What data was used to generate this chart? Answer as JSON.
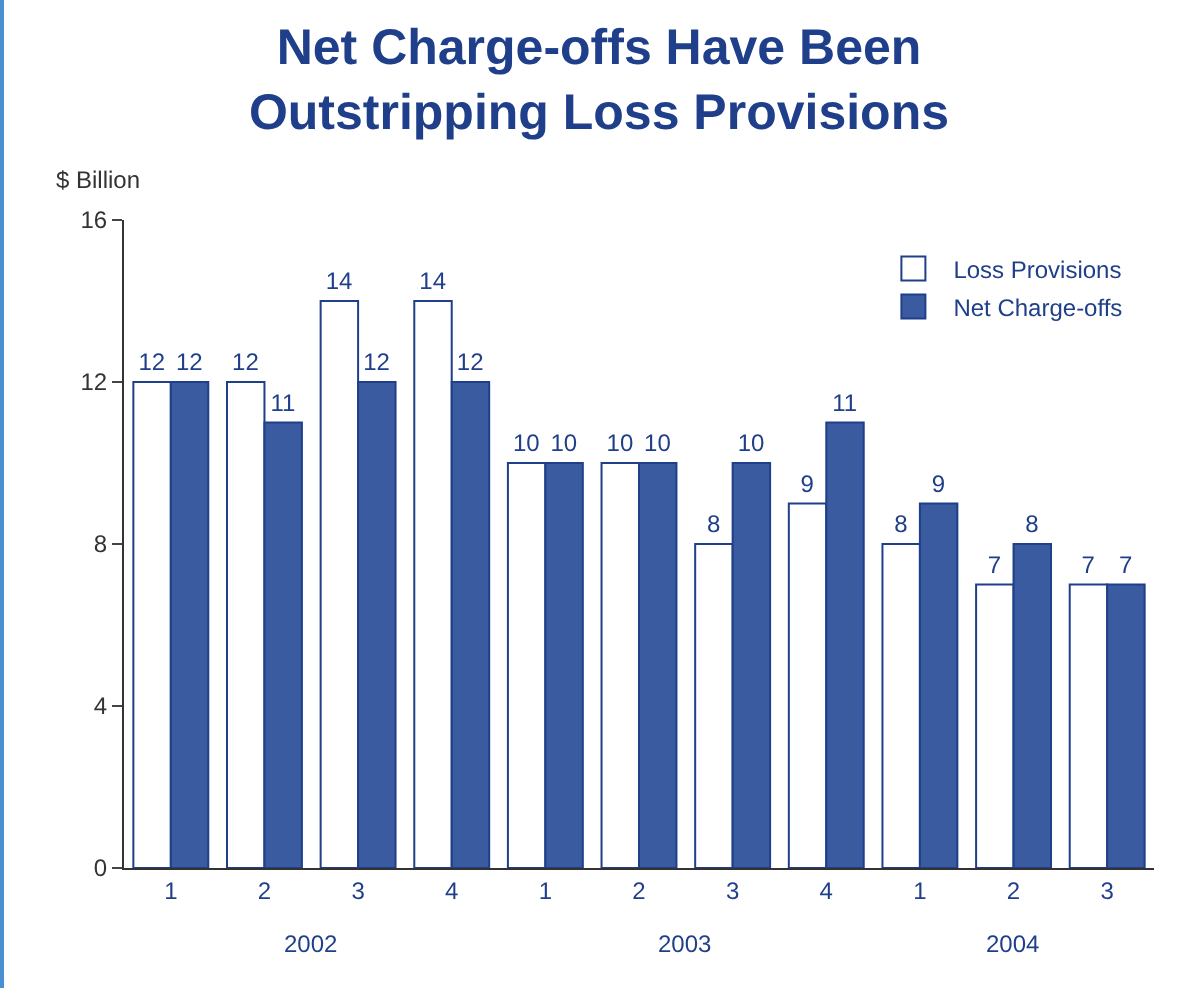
{
  "chart_data": {
    "type": "bar",
    "title": "Net Charge-offs Have Been\nOutstripping Loss Provisions",
    "ylabel": "$ Billion",
    "categories": [
      "1",
      "2",
      "3",
      "4",
      "1",
      "2",
      "3",
      "4",
      "1",
      "2",
      "3"
    ],
    "series": [
      {
        "name": "Loss Provisions",
        "color": "#ffffff",
        "values": [
          12,
          12,
          14,
          14,
          10,
          10,
          8,
          9,
          8,
          7,
          7
        ]
      },
      {
        "name": "Net Charge-offs",
        "color": "#3a5ba0",
        "values": [
          12,
          11,
          12,
          12,
          10,
          10,
          10,
          11,
          9,
          8,
          7
        ]
      }
    ],
    "annotations": [
      "2002",
      "2003",
      "2004"
    ],
    "ylim": [
      0,
      16
    ],
    "yticks": [
      0,
      4,
      8,
      12,
      16
    ],
    "grid": false,
    "legend": "top right",
    "data_labels": true
  }
}
